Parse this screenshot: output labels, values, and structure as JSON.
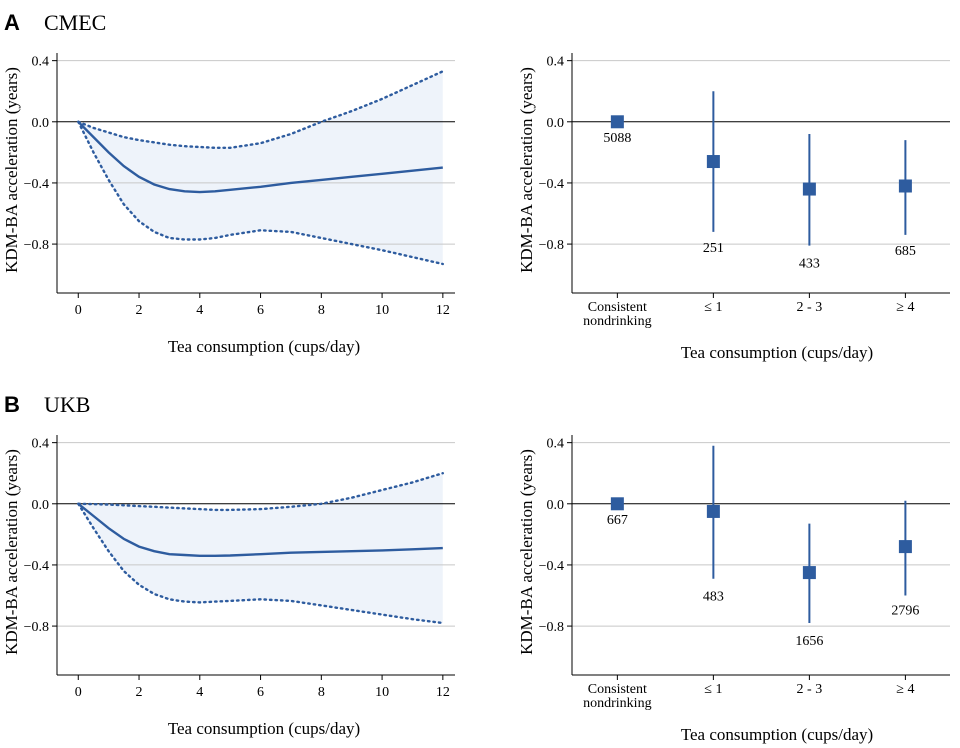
{
  "colors": {
    "line": "#2e5c9f",
    "band": "#eef3fa",
    "grid": "#c8c8c8",
    "zero": "#000000"
  },
  "panels": [
    {
      "letter": "A",
      "name": "CMEC",
      "spline": {
        "type": "line",
        "xlabel": "Tea consumption (cups/day)",
        "ylabel": "KDM-BA acceleration (years)",
        "xlim": [
          -0.7,
          12.4
        ],
        "ylim": [
          -1.12,
          0.45
        ],
        "xticks": [
          "0",
          "2",
          "4",
          "6",
          "8",
          "10",
          "12"
        ],
        "yticks": [
          "0.4",
          "0.0",
          "−0.4",
          "−0.8"
        ],
        "ytick_values": [
          0.4,
          0.0,
          -0.4,
          -0.8
        ],
        "grid": true,
        "x": [
          0,
          0.5,
          1,
          1.5,
          2,
          2.5,
          3,
          3.5,
          4,
          4.5,
          5,
          6,
          7,
          8,
          9,
          10,
          11,
          12
        ],
        "estimate": [
          0,
          -0.1,
          -0.2,
          -0.29,
          -0.36,
          -0.41,
          -0.44,
          -0.455,
          -0.46,
          -0.455,
          -0.445,
          -0.425,
          -0.4,
          -0.38,
          -0.36,
          -0.34,
          -0.32,
          -0.3
        ],
        "lower": [
          0,
          -0.2,
          -0.38,
          -0.54,
          -0.65,
          -0.72,
          -0.76,
          -0.77,
          -0.77,
          -0.76,
          -0.74,
          -0.71,
          -0.72,
          -0.76,
          -0.8,
          -0.84,
          -0.885,
          -0.93
        ],
        "upper": [
          0,
          -0.04,
          -0.07,
          -0.1,
          -0.12,
          -0.135,
          -0.15,
          -0.16,
          -0.165,
          -0.17,
          -0.17,
          -0.14,
          -0.08,
          0.0,
          0.07,
          0.15,
          0.24,
          0.33
        ]
      },
      "categorical": {
        "type": "scatter",
        "xlabel": "Tea consumption (cups/day)",
        "ylabel": "KDM-BA acceleration (years)",
        "ylim": [
          -1.12,
          0.45
        ],
        "yticks": [
          "0.4",
          "0.0",
          "−0.4",
          "−0.8"
        ],
        "ytick_values": [
          0.4,
          0.0,
          -0.4,
          -0.8
        ],
        "grid": true,
        "categories": [
          "Consistent\nnondrinking",
          "≤ 1",
          "2 - 3",
          "≥ 4"
        ],
        "values": [
          0,
          -0.26,
          -0.44,
          -0.42
        ],
        "ci_low": [
          0,
          -0.72,
          -0.81,
          -0.74
        ],
        "ci_high": [
          0,
          0.2,
          -0.08,
          -0.12
        ],
        "counts": [
          "5088",
          "251",
          "433",
          "685"
        ],
        "count_y": [
          -0.1,
          -0.82,
          -0.92,
          -0.84
        ]
      }
    },
    {
      "letter": "B",
      "name": "UKB",
      "spline": {
        "type": "line",
        "xlabel": "Tea consumption (cups/day)",
        "ylabel": "KDM-BA acceleration (years)",
        "xlim": [
          -0.7,
          12.4
        ],
        "ylim": [
          -1.12,
          0.45
        ],
        "xticks": [
          "0",
          "2",
          "4",
          "6",
          "8",
          "10",
          "12"
        ],
        "yticks": [
          "0.4",
          "0.0",
          "−0.4",
          "−0.8"
        ],
        "ytick_values": [
          0.4,
          0.0,
          -0.4,
          -0.8
        ],
        "grid": true,
        "x": [
          0,
          0.5,
          1,
          1.5,
          2,
          2.5,
          3,
          3.5,
          4,
          4.5,
          5,
          6,
          7,
          8,
          9,
          10,
          11,
          12
        ],
        "estimate": [
          0,
          -0.08,
          -0.16,
          -0.23,
          -0.28,
          -0.31,
          -0.33,
          -0.335,
          -0.34,
          -0.34,
          -0.338,
          -0.33,
          -0.32,
          -0.315,
          -0.31,
          -0.305,
          -0.298,
          -0.29
        ],
        "lower": [
          0,
          -0.16,
          -0.31,
          -0.44,
          -0.53,
          -0.59,
          -0.625,
          -0.64,
          -0.645,
          -0.64,
          -0.635,
          -0.625,
          -0.635,
          -0.665,
          -0.695,
          -0.725,
          -0.755,
          -0.78
        ],
        "upper": [
          0,
          -0.002,
          -0.005,
          -0.01,
          -0.015,
          -0.02,
          -0.025,
          -0.03,
          -0.035,
          -0.04,
          -0.04,
          -0.035,
          -0.02,
          0.0,
          0.04,
          0.09,
          0.14,
          0.2
        ]
      },
      "categorical": {
        "type": "scatter",
        "xlabel": "Tea consumption (cups/day)",
        "ylabel": "KDM-BA acceleration (years)",
        "ylim": [
          -1.12,
          0.45
        ],
        "yticks": [
          "0.4",
          "0.0",
          "−0.4",
          "−0.8"
        ],
        "ytick_values": [
          0.4,
          0.0,
          -0.4,
          -0.8
        ],
        "grid": true,
        "categories": [
          "Consistent\nnondrinking",
          "≤ 1",
          "2 - 3",
          "≥ 4"
        ],
        "values": [
          0,
          -0.05,
          -0.45,
          -0.28
        ],
        "ci_low": [
          0,
          -0.49,
          -0.78,
          -0.6
        ],
        "ci_high": [
          0,
          0.38,
          -0.13,
          0.02
        ],
        "counts": [
          "667",
          "483",
          "1656",
          "2796"
        ],
        "count_y": [
          -0.1,
          -0.6,
          -0.89,
          -0.69
        ]
      }
    }
  ]
}
